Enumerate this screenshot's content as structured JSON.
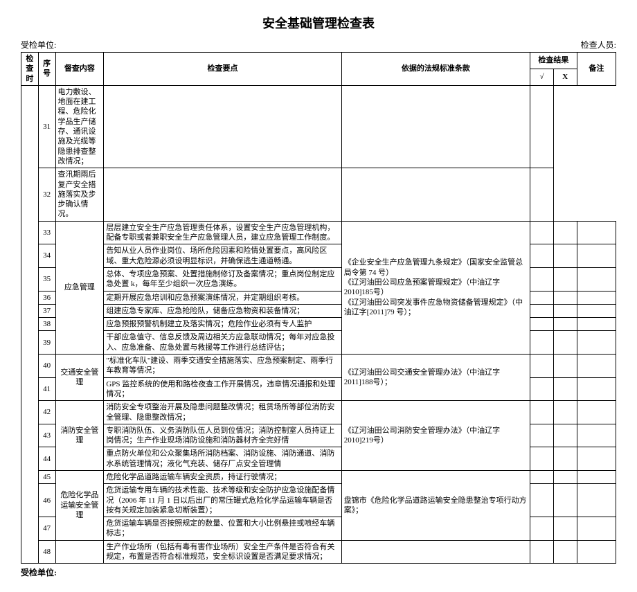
{
  "title": "安全基础管理检查表",
  "header": {
    "org_label": "受检单位:",
    "inspector_label": "检查人员:"
  },
  "columns": {
    "time": "检查时",
    "seq": "序号",
    "category": "督查内容",
    "point": "检查要点",
    "basis": "依据的法规标准条款",
    "result": "检查结果",
    "check_mark": "√",
    "x_mark": "X",
    "note": "备注"
  },
  "footer": {
    "org_label": "受检单位:"
  },
  "rows": [
    {
      "seq": "31",
      "cat": "",
      "cat_rowspan": 0,
      "point": "电力敷设、地面在建工程、危险化学品生产储存、通讯设施及光缆等隐患排查整改情况；",
      "basis": "",
      "basis_rowspan": 0
    },
    {
      "seq": "32",
      "cat": "",
      "cat_rowspan": 0,
      "point": "查汛期雨后复产安全措施落实及步步确认情况。",
      "basis": "",
      "basis_rowspan": 0
    },
    {
      "seq": "33",
      "cat": "应急管理",
      "cat_rowspan": 7,
      "point": "层层建立安全生产应急管理责任体系，设置安全生产应急管理机构，配备专职或者兼职安全生产应急管理人员，建立应急管理工作制度。",
      "basis": "《企业安全生产应急管理九条规定》（国家安全监管总局令第 74 号）\n《辽河油田公司应急预案管理规定》（中油辽字 2010]185号）\n《辽河油田公司突发事件应急物资储备管理规定》（中油辽字[2011]79 号）；",
      "basis_rowspan": 7
    },
    {
      "seq": "34",
      "cat": "",
      "cat_rowspan": 0,
      "point": "告知从业人员作业岗位、场所危险因素和险情处置要点，高风险区域、重大危险源必须设明显标识，并确保逃生通道畅通。",
      "basis": "",
      "basis_rowspan": 0
    },
    {
      "seq": "35",
      "cat": "",
      "cat_rowspan": 0,
      "point": "总体、专项应急预案、处置措施制修订及备案情况；重点岗位制定应急处置 k，每年至少组织一次应急演练。",
      "basis": "",
      "basis_rowspan": 0
    },
    {
      "seq": "36",
      "cat": "",
      "cat_rowspan": 0,
      "point": "定期开展应急培训和应急预案演练情况，并定期组织考核。",
      "basis": "",
      "basis_rowspan": 0
    },
    {
      "seq": "37",
      "cat": "",
      "cat_rowspan": 0,
      "point": "组建应急专家库、应急抢险队，储备应急物资和装备情况；",
      "basis": "",
      "basis_rowspan": 0
    },
    {
      "seq": "38",
      "cat": "",
      "cat_rowspan": 0,
      "point": "应急预报预警机制建立及落实情况；危险作业必须有专人监护",
      "basis": "",
      "basis_rowspan": 0
    },
    {
      "seq": "39",
      "cat": "",
      "cat_rowspan": 0,
      "point": "干部应急值守、信息反馈及周边相关方应急联动情况；每年对应急投入、应急准备、应急处置与救援等工作进行总结评估；",
      "basis": "",
      "basis_rowspan": 0
    },
    {
      "seq": "40",
      "cat": "交通安全管理",
      "cat_rowspan": 2,
      "point": "\"标准化车队\"建设、雨季交通安全措施落实、应急预案制定、雨季行车教育等情况；",
      "basis": "《辽河油田公司交通安全管理办法》（中油辽字 2011]188号）；",
      "basis_rowspan": 2
    },
    {
      "seq": "41",
      "cat": "",
      "cat_rowspan": 0,
      "point": "GPS 监控系统的使用和路检夜查工作开展情况，违章情况通报和处理情况；",
      "basis": "",
      "basis_rowspan": 0
    },
    {
      "seq": "42",
      "cat": "消防安全管理",
      "cat_rowspan": 3,
      "point": "消防安全专项整治开展及隐患问题整改情况；租赁场所等部位消防安全管理、隐患整改情况；",
      "basis": "《辽河油田公司消防安全管理办法》（中油辽字 2010]219号）",
      "basis_rowspan": 3
    },
    {
      "seq": "43",
      "cat": "",
      "cat_rowspan": 0,
      "point": "专职消防队伍、义务消防队伍人员到位情况；消防控制室人员持证上岗情况；生产作业现场消防设施和消防器材齐全完好情",
      "basis": "",
      "basis_rowspan": 0
    },
    {
      "seq": "44",
      "cat": "",
      "cat_rowspan": 0,
      "point": "重点防火单位和公众聚集场所消防档案、消防设施、消防通道、消防水系统管理情况；液化气充装、储存厂点安全管理情",
      "basis": "",
      "basis_rowspan": 0
    },
    {
      "seq": "45",
      "cat": "危险化学品运输安全管理",
      "cat_rowspan": 3,
      "point": "危险化学品道路运输车辆安全资质，持证行驶情况；",
      "basis": "盘锦市《危险化学品道路运输安全隐患整治专项行动方案》；",
      "basis_rowspan": 3
    },
    {
      "seq": "46",
      "cat": "",
      "cat_rowspan": 0,
      "point": "危货运输专用车辆的技术性能、技术等级和安全防护应急设施配备情况（2006 年 11 月 1 日以后出厂的常压罐式危险化学品运输车辆是否按有关规定加装紧急切断装置）；",
      "basis": "",
      "basis_rowspan": 0
    },
    {
      "seq": "47",
      "cat": "",
      "cat_rowspan": 0,
      "point": "危货运输车辆是否按照规定的数量、位置和大小比例悬挂或喷经车辆标志；",
      "basis": "",
      "basis_rowspan": 0
    },
    {
      "seq": "48",
      "cat": "",
      "cat_rowspan": 1,
      "point": "生产作业场所（包括有毒有害作业场所）安全生产条件是否符合有关规定，布置是否符合标准规范，安全标识设置是否满足要求情况；",
      "basis": "",
      "basis_rowspan": 1
    }
  ]
}
